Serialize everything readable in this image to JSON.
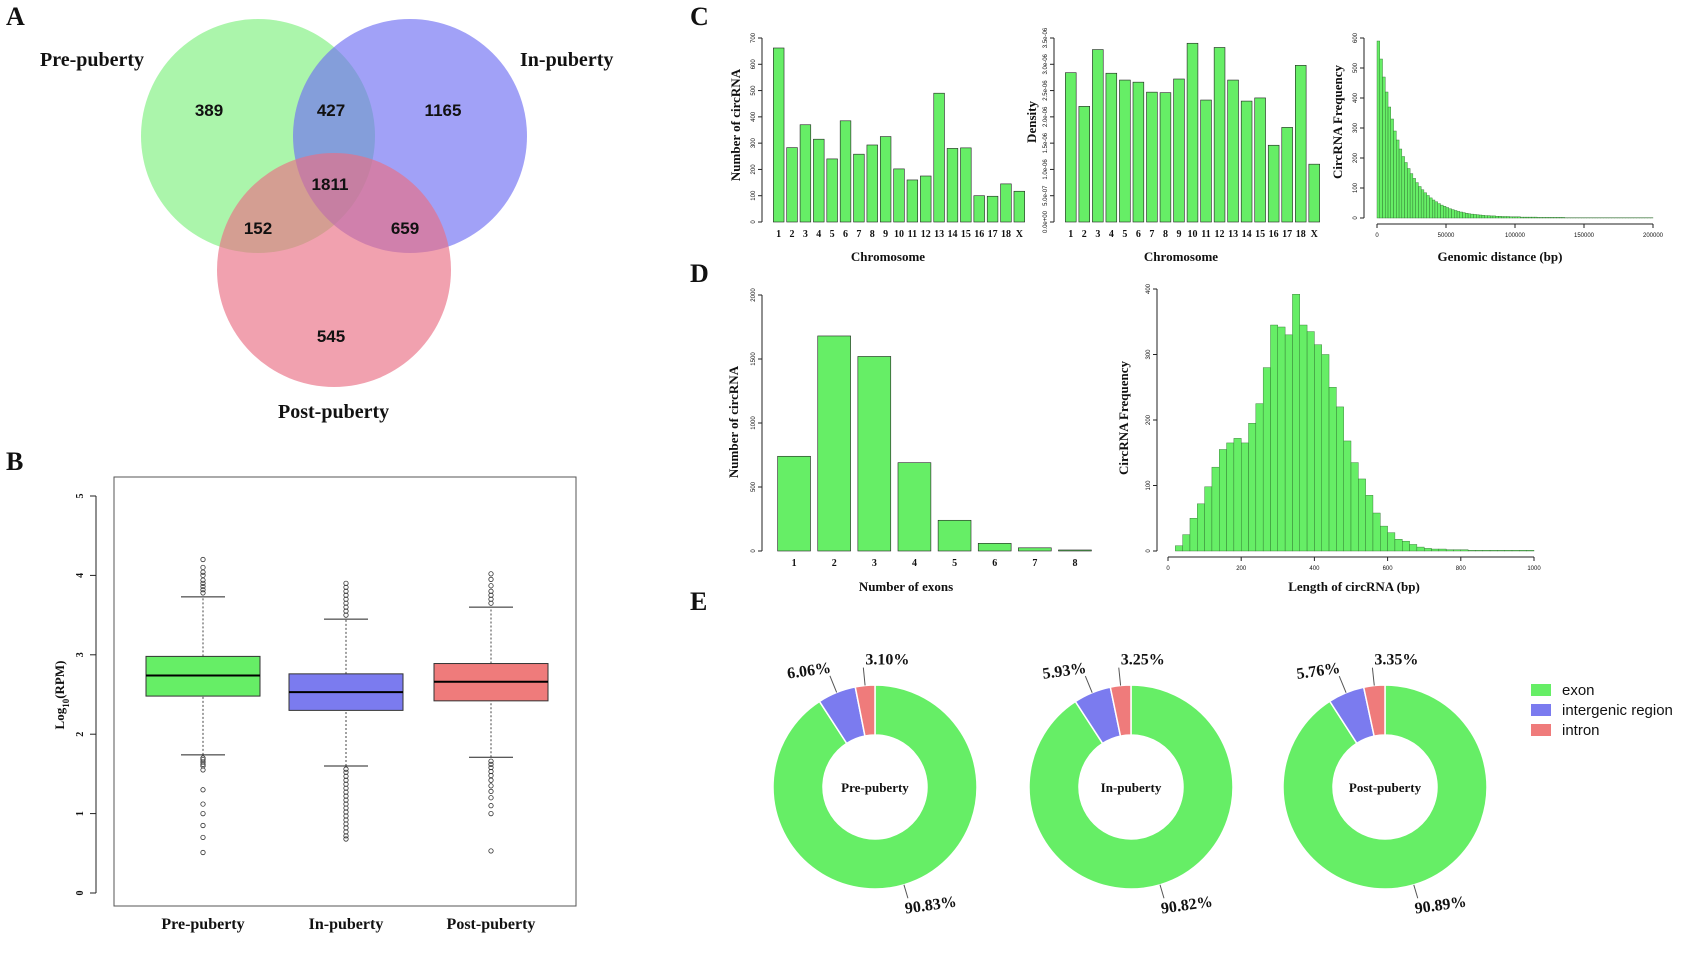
{
  "panels": {
    "a": "A",
    "b": "B",
    "c": "C",
    "d": "D",
    "e": "E"
  },
  "colors": {
    "green": "#66ee66",
    "blue": "#7b7bef",
    "red": "#ef7b7b",
    "venn_green": "#7ef07e",
    "venn_blue": "#6f6ff2",
    "venn_red": "#ea6f84"
  },
  "chart_data": [
    {
      "id": "venn",
      "type": "venn",
      "sets": [
        "Pre-puberty",
        "In-puberty",
        "Post-puberty"
      ],
      "regions": {
        "pre_only": 389,
        "in_only": 1165,
        "post_only": 545,
        "pre_in": 427,
        "pre_post": 152,
        "in_post": 659,
        "all": 1811
      }
    },
    {
      "id": "boxplot",
      "type": "box",
      "categories": [
        "Pre-puberty",
        "In-puberty",
        "Post-puberty"
      ],
      "ylabel": "Log10(RPM)",
      "ylabel_parts": [
        "Log",
        "10",
        "(RPM)"
      ],
      "ylim": [
        0,
        5
      ],
      "yticks": [
        "0",
        "1",
        "2",
        "3",
        "4",
        "5"
      ],
      "boxes": [
        {
          "q1": 2.48,
          "median": 2.74,
          "q3": 2.98,
          "whisker_low": 1.74,
          "whisker_high": 3.73,
          "outliers_low": [
            0.51,
            0.7,
            0.85,
            1.0,
            1.12,
            1.3,
            1.55,
            1.6,
            1.62,
            1.65,
            1.68,
            1.7
          ],
          "outliers_high": [
            3.78,
            3.82,
            3.86,
            3.9,
            3.94,
            4.0,
            4.04,
            4.1,
            4.2
          ]
        },
        {
          "q1": 2.3,
          "median": 2.53,
          "q3": 2.76,
          "whisker_low": 1.6,
          "whisker_high": 3.45,
          "outliers_low": [
            0.68,
            0.72,
            0.77,
            0.82,
            0.87,
            0.92,
            0.97,
            1.02,
            1.07,
            1.12,
            1.17,
            1.22,
            1.27,
            1.32,
            1.37,
            1.42,
            1.47,
            1.52,
            1.56
          ],
          "outliers_high": [
            3.5,
            3.55,
            3.6,
            3.65,
            3.7,
            3.75,
            3.8,
            3.85,
            3.9
          ]
        },
        {
          "q1": 2.42,
          "median": 2.66,
          "q3": 2.89,
          "whisker_low": 1.71,
          "whisker_high": 3.6,
          "outliers_low": [
            0.53,
            1.0,
            1.1,
            1.2,
            1.28,
            1.35,
            1.42,
            1.48,
            1.53,
            1.58,
            1.62,
            1.66
          ],
          "outliers_high": [
            3.65,
            3.7,
            3.75,
            3.8,
            3.87,
            3.95,
            4.02
          ]
        }
      ]
    },
    {
      "id": "chrom_count",
      "type": "bar",
      "xlabel": "Chromosome",
      "ylabel": "Number of circRNA",
      "ylim": [
        0,
        700
      ],
      "yticks": [
        "0",
        "100",
        "200",
        "300",
        "400",
        "500",
        "600",
        "700"
      ],
      "categories": [
        "1",
        "2",
        "3",
        "4",
        "5",
        "6",
        "7",
        "8",
        "9",
        "10",
        "11",
        "12",
        "13",
        "14",
        "15",
        "16",
        "17",
        "18",
        "X"
      ],
      "values": [
        662,
        283,
        370,
        315,
        240,
        385,
        258,
        293,
        325,
        202,
        160,
        175,
        490,
        280,
        282,
        100,
        98,
        145,
        117
      ]
    },
    {
      "id": "chrom_density",
      "type": "bar",
      "xlabel": "Chromosome",
      "ylabel": "Density",
      "ylim": [
        0,
        3.5e-06
      ],
      "yticks": [
        "0.0e+00",
        "5.0e-07",
        "1.0e-06",
        "1.5e-06",
        "2.0e-06",
        "2.5e-06",
        "3.0e-06",
        "3.5e-06"
      ],
      "categories": [
        "1",
        "2",
        "3",
        "4",
        "5",
        "6",
        "7",
        "8",
        "9",
        "10",
        "11",
        "12",
        "13",
        "14",
        "15",
        "16",
        "17",
        "18",
        "X"
      ],
      "values": [
        2.84e-06,
        2.2e-06,
        3.28e-06,
        2.83e-06,
        2.7e-06,
        2.66e-06,
        2.47e-06,
        2.46e-06,
        2.72e-06,
        3.4e-06,
        2.32e-06,
        3.32e-06,
        2.7e-06,
        2.3e-06,
        2.36e-06,
        1.46e-06,
        1.8e-06,
        2.98e-06,
        1.1e-06
      ]
    },
    {
      "id": "genomic_distance",
      "type": "histogram",
      "xlabel": "Genomic distance (bp)",
      "ylabel": "CircRNA Frequency",
      "xlim": [
        0,
        200000
      ],
      "ylim": [
        0,
        600
      ],
      "xticks": [
        "0",
        "50000",
        "100000",
        "150000",
        "200000"
      ],
      "yticks": [
        "0",
        "100",
        "200",
        "300",
        "400",
        "500",
        "600"
      ],
      "bin_width": 2000,
      "values": [
        590,
        530,
        470,
        420,
        370,
        330,
        290,
        260,
        230,
        205,
        185,
        165,
        148,
        132,
        118,
        105,
        94,
        84,
        75,
        67,
        60,
        54,
        48,
        43,
        39,
        35,
        31,
        28,
        25,
        22,
        20,
        18,
        16,
        14,
        13,
        12,
        11,
        10,
        9,
        8,
        8,
        7,
        7,
        6,
        6,
        5,
        5,
        5,
        4,
        4,
        4,
        4,
        3,
        3,
        3,
        3,
        3,
        3,
        2,
        2,
        2,
        2,
        2,
        2,
        2,
        2,
        2,
        2,
        1,
        1,
        1,
        1,
        1,
        1,
        1,
        1,
        1,
        1,
        1,
        1,
        1,
        1,
        1,
        1,
        1,
        1,
        1,
        1,
        1,
        1,
        1,
        1,
        1,
        1,
        1,
        1,
        1,
        1,
        1,
        1
      ]
    },
    {
      "id": "exon_count",
      "type": "bar",
      "xlabel": "Number of exons",
      "ylabel": "Number of circRNA",
      "ylim": [
        0,
        2000
      ],
      "yticks": [
        "0",
        "500",
        "1000",
        "1500",
        "2000"
      ],
      "categories": [
        "1",
        "2",
        "3",
        "4",
        "5",
        "6",
        "7",
        "8"
      ],
      "values": [
        740,
        1680,
        1520,
        690,
        240,
        60,
        25,
        8
      ]
    },
    {
      "id": "circ_length",
      "type": "histogram",
      "xlabel": "Length of circRNA (bp)",
      "ylabel": "CircRNA Frequency",
      "xlim": [
        0,
        1000
      ],
      "ylim": [
        0,
        400
      ],
      "xticks": [
        "0",
        "200",
        "400",
        "600",
        "800",
        "1000"
      ],
      "yticks": [
        "0",
        "100",
        "200",
        "300",
        "400"
      ],
      "bin_width": 20,
      "x_start": 20,
      "values": [
        8,
        25,
        50,
        72,
        98,
        128,
        155,
        165,
        172,
        165,
        195,
        225,
        280,
        345,
        342,
        330,
        392,
        345,
        335,
        315,
        300,
        250,
        220,
        168,
        135,
        110,
        85,
        58,
        38,
        28,
        18,
        15,
        10,
        6,
        4,
        3,
        3,
        2,
        2,
        2,
        1,
        1,
        1,
        1,
        1,
        1,
        1,
        1,
        1
      ]
    },
    {
      "id": "donuts",
      "type": "pie",
      "legend": [
        "exon",
        "intergenic region",
        "intron"
      ],
      "charts": [
        {
          "center": "Pre-puberty",
          "values": [
            90.83,
            6.06,
            3.1
          ],
          "labels": [
            "90.83%",
            "6.06%",
            "3.10%"
          ]
        },
        {
          "center": "In-puberty",
          "values": [
            90.82,
            5.93,
            3.25
          ],
          "labels": [
            "90.82%",
            "5.93%",
            "3.25%"
          ]
        },
        {
          "center": "Post-puberty",
          "values": [
            90.89,
            5.76,
            3.35
          ],
          "labels": [
            "90.89%",
            "5.76%",
            "3.35%"
          ]
        }
      ]
    }
  ]
}
